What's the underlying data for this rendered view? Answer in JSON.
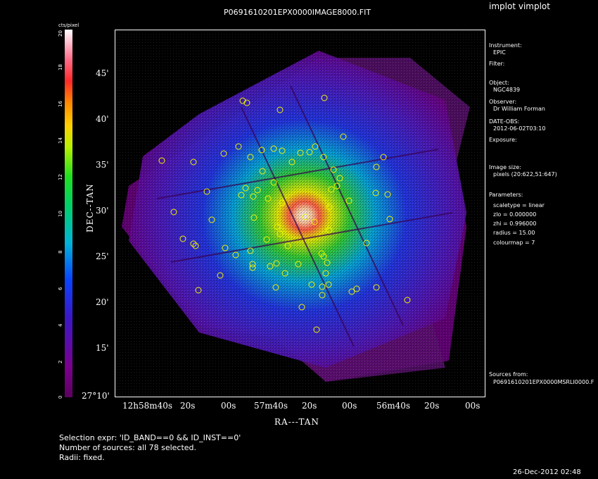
{
  "app_title": "implot vimplot",
  "image_title": "P0691610201EPX0000IMAGE8000.FIT",
  "colorbar": {
    "unit_label": "cts/pixel",
    "ticks": [
      "0",
      "2",
      "4",
      "6",
      "8",
      "10",
      "12",
      "14",
      "16",
      "18",
      "20"
    ]
  },
  "axes": {
    "ylabel": "DEC--TAN",
    "xlabel": "RA---TAN",
    "yticks": [
      "45'",
      "40'",
      "35'",
      "30'",
      "25'",
      "20'",
      "15'",
      "27°10'"
    ],
    "xticks": [
      "12h58m40s",
      "20s",
      "00s",
      "57m40s",
      "20s",
      "00s",
      "56m40s",
      "20s",
      "00s"
    ]
  },
  "info": {
    "instrument_label": "Instrument:",
    "instrument_value": "EPIC",
    "filter_label": "Filter:",
    "object_label": "Object:",
    "object_value": "NGC4839",
    "observer_label": "Observer:",
    "observer_value": "Dr William Forman",
    "date_label": "DATE-OBS:",
    "date_value": "2012-06-02T03:10",
    "exposure_label": "Exposure:",
    "image_size_label": "Image size:",
    "image_size_value": "pixels (20:622,51:647)",
    "parameters_label": "Parameters:",
    "param_scaletype": "scaletype = linear",
    "param_zlo": "zlo = 0.000000",
    "param_zhi": "zhi = 0.996000",
    "param_radius": "radius = 15.00",
    "param_colourmap": "colourmap = 7",
    "sources_label": "Sources from:",
    "sources_value": "P0691610201EPX0000MSRLI0000.F"
  },
  "footer": {
    "selection": "Selection expr: 'ID_BAND==0 && ID_INST==0'",
    "number": "Number of sources: all 78 selected.",
    "radii": "Radii: fixed.",
    "timestamp": "26-Dec-2012 02:48"
  },
  "colors": {
    "background": "#000000",
    "source_circle": "#f4f400",
    "source_circle_alt": "#90ff70",
    "exposure_low": "#6a0080"
  }
}
